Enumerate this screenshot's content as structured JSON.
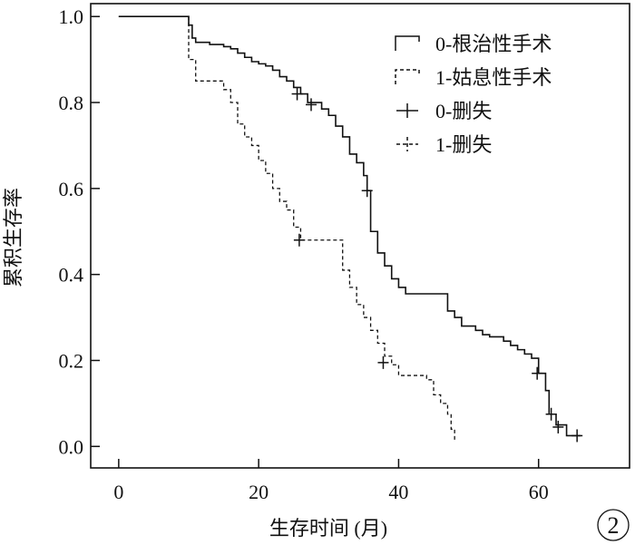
{
  "chart_data": {
    "type": "line",
    "subtype": "kaplan-meier step curve",
    "xlabel": "生存时间 (月)",
    "ylabel": "累积生存率",
    "xlim": [
      -4,
      73
    ],
    "ylim": [
      -0.05,
      1.03
    ],
    "xticks": [
      0,
      20,
      40,
      60
    ],
    "xtick_labels": [
      "0",
      "20",
      "40",
      "60"
    ],
    "yticks": [
      0.0,
      0.2,
      0.4,
      0.6,
      0.8,
      1.0
    ],
    "ytick_labels": [
      "0.0",
      "0.2",
      "0.4",
      "0.6",
      "0.8",
      "1.0"
    ],
    "grid": false,
    "legend_position": "top-right",
    "legend": [
      {
        "label": "0-根治性手术",
        "style": "solid",
        "marker": "step"
      },
      {
        "label": "1-姑息性手术",
        "style": "dashed",
        "marker": "step"
      },
      {
        "label": "0-删失",
        "style": "solid",
        "marker": "plus"
      },
      {
        "label": "1-删失",
        "style": "dashed",
        "marker": "plus"
      }
    ],
    "series": [
      {
        "label": "0-根治性手术",
        "style": "solid",
        "steps": [
          [
            0,
            1.0
          ],
          [
            10,
            0.98
          ],
          [
            10.5,
            0.95
          ],
          [
            11,
            0.94
          ],
          [
            13,
            0.935
          ],
          [
            15,
            0.93
          ],
          [
            16,
            0.925
          ],
          [
            17,
            0.915
          ],
          [
            18,
            0.905
          ],
          [
            19,
            0.895
          ],
          [
            20,
            0.89
          ],
          [
            21,
            0.885
          ],
          [
            22,
            0.875
          ],
          [
            23,
            0.86
          ],
          [
            24,
            0.85
          ],
          [
            25,
            0.835
          ],
          [
            26,
            0.82
          ],
          [
            27,
            0.8
          ],
          [
            29,
            0.785
          ],
          [
            30,
            0.77
          ],
          [
            31,
            0.745
          ],
          [
            32,
            0.72
          ],
          [
            33,
            0.68
          ],
          [
            34,
            0.66
          ],
          [
            35,
            0.63
          ],
          [
            35.5,
            0.595
          ],
          [
            36,
            0.5
          ],
          [
            37,
            0.45
          ],
          [
            38,
            0.42
          ],
          [
            39,
            0.39
          ],
          [
            40,
            0.37
          ],
          [
            41,
            0.355
          ],
          [
            47,
            0.315
          ],
          [
            48,
            0.3
          ],
          [
            49,
            0.28
          ],
          [
            51,
            0.27
          ],
          [
            52,
            0.26
          ],
          [
            53,
            0.255
          ],
          [
            55,
            0.245
          ],
          [
            56,
            0.235
          ],
          [
            57,
            0.225
          ],
          [
            58,
            0.215
          ],
          [
            59,
            0.205
          ],
          [
            60,
            0.17
          ],
          [
            61,
            0.13
          ],
          [
            61.5,
            0.075
          ],
          [
            62.5,
            0.05
          ],
          [
            64,
            0.025
          ],
          [
            66,
            0.025
          ]
        ],
        "censored": [
          [
            25.5,
            0.82
          ],
          [
            27.5,
            0.795
          ],
          [
            35.5,
            0.595
          ],
          [
            59.8,
            0.17
          ],
          [
            61.8,
            0.075
          ],
          [
            62.8,
            0.045
          ],
          [
            65.5,
            0.025
          ]
        ]
      },
      {
        "label": "1-姑息性手术",
        "style": "dashed",
        "steps": [
          [
            0,
            1.0
          ],
          [
            10,
            0.9
          ],
          [
            11,
            0.85
          ],
          [
            15,
            0.83
          ],
          [
            16,
            0.8
          ],
          [
            17,
            0.75
          ],
          [
            18,
            0.72
          ],
          [
            19,
            0.7
          ],
          [
            20,
            0.665
          ],
          [
            21,
            0.635
          ],
          [
            22,
            0.6
          ],
          [
            23,
            0.57
          ],
          [
            24,
            0.55
          ],
          [
            25,
            0.51
          ],
          [
            26,
            0.48
          ],
          [
            32,
            0.41
          ],
          [
            33,
            0.37
          ],
          [
            34,
            0.33
          ],
          [
            35,
            0.3
          ],
          [
            36,
            0.27
          ],
          [
            37,
            0.24
          ],
          [
            38,
            0.21
          ],
          [
            39,
            0.19
          ],
          [
            40,
            0.165
          ],
          [
            44,
            0.155
          ],
          [
            45,
            0.12
          ],
          [
            46,
            0.1
          ],
          [
            47,
            0.075
          ],
          [
            47.5,
            0.04
          ],
          [
            48,
            0.015
          ]
        ],
        "censored": [
          [
            25.8,
            0.48
          ],
          [
            37.8,
            0.195
          ]
        ]
      }
    ],
    "annotation": "2"
  }
}
